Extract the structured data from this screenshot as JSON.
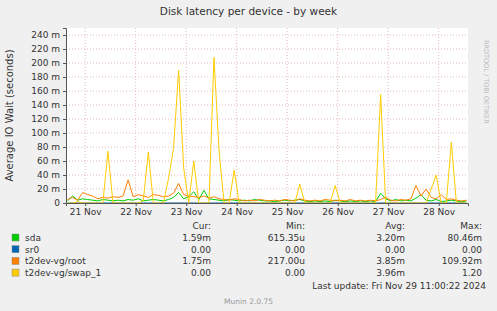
{
  "chart_data": {
    "type": "line",
    "title": "Disk latency per device - by week",
    "ylabel": "Average IO Wait (seconds)",
    "x": [
      20.65,
      20.75,
      20.85,
      20.95,
      21.05,
      21.15,
      21.25,
      21.35,
      21.45,
      21.55,
      21.65,
      21.75,
      21.85,
      21.95,
      22.05,
      22.15,
      22.25,
      22.35,
      22.45,
      22.55,
      22.65,
      22.75,
      22.85,
      22.95,
      23.05,
      23.15,
      23.25,
      23.35,
      23.45,
      23.55,
      23.65,
      23.75,
      23.85,
      23.95,
      24.05,
      24.15,
      24.25,
      24.35,
      24.45,
      24.55,
      24.65,
      24.75,
      24.85,
      24.95,
      25.05,
      25.15,
      25.25,
      25.35,
      25.45,
      25.55,
      25.65,
      25.75,
      25.85,
      25.95,
      26.05,
      26.15,
      26.25,
      26.35,
      26.45,
      26.55,
      26.65,
      26.75,
      26.85,
      26.95,
      27.05,
      27.15,
      27.25,
      27.35,
      27.45,
      27.55,
      27.65,
      27.75,
      27.85,
      27.95,
      28.05,
      28.15,
      28.25,
      28.35,
      28.45,
      28.55
    ],
    "xlim": [
      20.62,
      28.58
    ],
    "xticks": [
      {
        "value": 21,
        "label": "21 Nov"
      },
      {
        "value": 22,
        "label": "22 Nov"
      },
      {
        "value": 23,
        "label": "23 Nov"
      },
      {
        "value": 24,
        "label": "24 Nov"
      },
      {
        "value": 25,
        "label": "25 Nov"
      },
      {
        "value": 26,
        "label": "26 Nov"
      },
      {
        "value": 27,
        "label": "27 Nov"
      },
      {
        "value": 28,
        "label": "28 Nov"
      }
    ],
    "ylim": [
      0,
      0.25
    ],
    "yticks": [
      0,
      {
        "value": 0.02,
        "label": "20 m"
      },
      {
        "value": 0.04,
        "label": "40 m"
      },
      {
        "value": 0.06,
        "label": "60 m"
      },
      {
        "value": 0.08,
        "label": "80 m"
      },
      {
        "value": 0.1,
        "label": "100 m"
      },
      {
        "value": 0.12,
        "label": "120 m"
      },
      {
        "value": 0.14,
        "label": "140 m"
      },
      {
        "value": 0.16,
        "label": "160 m"
      },
      {
        "value": 0.18,
        "label": "180 m"
      },
      {
        "value": 0.2,
        "label": "200 m"
      },
      {
        "value": 0.22,
        "label": "220 m"
      },
      {
        "value": 0.24,
        "label": "240 m"
      }
    ],
    "grid": true,
    "legend": "bottom",
    "stats_columns": [
      "Cur:",
      "Min:",
      "Avg:",
      "Max:"
    ],
    "series": [
      {
        "name": "sda",
        "color": "#00cc00",
        "stats": [
          "1.59m",
          "615.35u",
          "3.20m",
          "80.46m"
        ],
        "values": [
          0.003,
          0.01,
          0.004,
          0.006,
          0.005,
          0.004,
          0.003,
          0.005,
          0.004,
          0.003,
          0.004,
          0.003,
          0.005,
          0.004,
          0.006,
          0.003,
          0.004,
          0.005,
          0.004,
          0.003,
          0.005,
          0.008,
          0.015,
          0.006,
          0.009,
          0.016,
          0.005,
          0.018,
          0.006,
          0.005,
          0.004,
          0.003,
          0.005,
          0.004,
          0.003,
          0.004,
          0.003,
          0.005,
          0.004,
          0.003,
          0.003,
          0.002,
          0.003,
          0.004,
          0.003,
          0.004,
          0.005,
          0.003,
          0.002,
          0.003,
          0.002,
          0.003,
          0.002,
          0.004,
          0.003,
          0.002,
          0.003,
          0.002,
          0.003,
          0.002,
          0.003,
          0.002,
          0.014,
          0.006,
          0.003,
          0.005,
          0.003,
          0.004,
          0.003,
          0.007,
          0.012,
          0.004,
          0.003,
          0.005,
          0.002,
          0.003,
          0.004,
          0.003,
          0.002,
          0.003
        ]
      },
      {
        "name": "sr0",
        "color": "#0066b3",
        "stats": [
          "0.00",
          "0.00",
          "0.00",
          "0.00"
        ],
        "values": [
          0,
          0,
          0,
          0,
          0,
          0,
          0,
          0,
          0,
          0,
          0,
          0,
          0,
          0,
          0,
          0,
          0,
          0,
          0,
          0,
          0,
          0,
          0,
          0,
          0,
          0,
          0,
          0,
          0,
          0,
          0,
          0,
          0,
          0,
          0,
          0,
          0,
          0,
          0,
          0,
          0,
          0,
          0,
          0,
          0,
          0,
          0,
          0,
          0,
          0,
          0,
          0,
          0,
          0,
          0,
          0,
          0,
          0,
          0,
          0,
          0,
          0,
          0,
          0,
          0,
          0,
          0,
          0,
          0,
          0,
          0,
          0,
          0,
          0,
          0,
          0,
          0,
          0,
          0,
          0
        ]
      },
      {
        "name": "t2dev-vg/root",
        "color": "#ff8000",
        "stats": [
          "1.75m",
          "217.00u",
          "3.85m",
          "109.92m"
        ],
        "values": [
          0.005,
          0.008,
          0.004,
          0.015,
          0.012,
          0.01,
          0.006,
          0.008,
          0.007,
          0.009,
          0.008,
          0.01,
          0.033,
          0.009,
          0.012,
          0.01,
          0.008,
          0.012,
          0.011,
          0.009,
          0.01,
          0.014,
          0.028,
          0.012,
          0.01,
          0.009,
          0.008,
          0.01,
          0.007,
          0.009,
          0.006,
          0.005,
          0.004,
          0.006,
          0.005,
          0.003,
          0.004,
          0.003,
          0.005,
          0.004,
          0.003,
          0.004,
          0.003,
          0.005,
          0.004,
          0.003,
          0.006,
          0.004,
          0.003,
          0.004,
          0.003,
          0.005,
          0.004,
          0.003,
          0.004,
          0.003,
          0.005,
          0.003,
          0.004,
          0.003,
          0.004,
          0.003,
          0.005,
          0.008,
          0.004,
          0.003,
          0.005,
          0.004,
          0.006,
          0.025,
          0.01,
          0.02,
          0.008,
          0.006,
          0.012,
          0.005,
          0.006,
          0.004,
          0.003,
          0.004
        ]
      },
      {
        "name": "t2dev-vg/swap_1",
        "color": "#ffcc00",
        "stats": [
          "0.00",
          "0.00",
          "3.96m",
          "1.20"
        ],
        "values": [
          0,
          0,
          0.002,
          0,
          0,
          0,
          0,
          0,
          0.074,
          0,
          0,
          0,
          0,
          0,
          0,
          0.003,
          0.073,
          0,
          0,
          0,
          0.035,
          0.078,
          0.19,
          0.05,
          0,
          0.06,
          0,
          0,
          0,
          0.208,
          0.075,
          0,
          0,
          0.047,
          0,
          0,
          0,
          0,
          0,
          0,
          0,
          0,
          0,
          0,
          0,
          0,
          0.027,
          0,
          0,
          0,
          0,
          0,
          0,
          0.025,
          0,
          0,
          0,
          0,
          0,
          0,
          0,
          0,
          0.155,
          0,
          0,
          0,
          0,
          0,
          0,
          0,
          0,
          0,
          0.02,
          0.04,
          0,
          0,
          0.087,
          0,
          0,
          0
        ]
      }
    ],
    "last_update": "Last update: Fri Nov 29 11:00:22 2024",
    "footer": "Munin 2.0.75",
    "watermark": "RRDTOOL / TOBI OETIKER"
  }
}
